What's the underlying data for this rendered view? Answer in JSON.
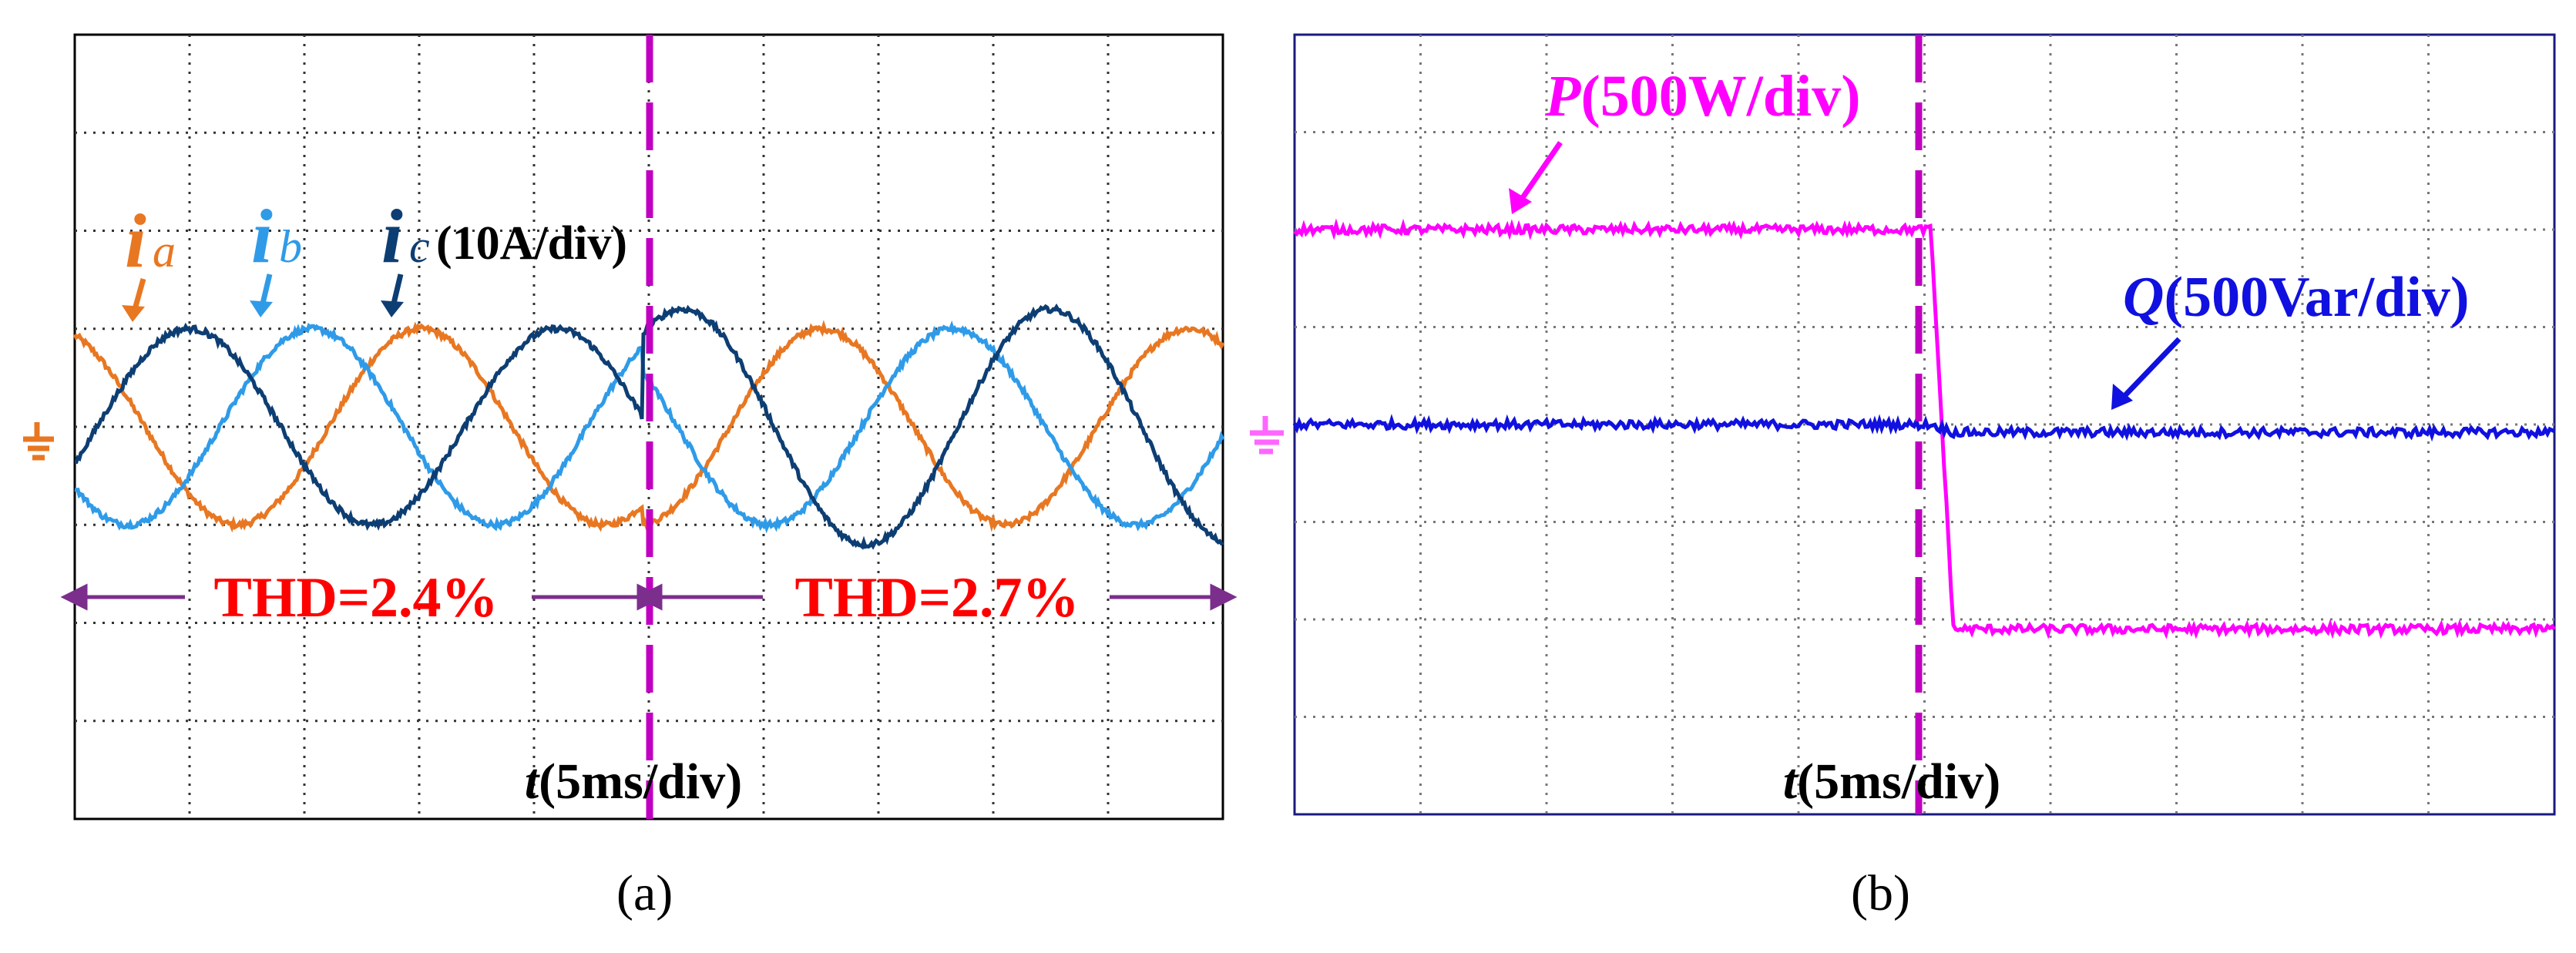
{
  "figure": {
    "panels": [
      {
        "caption": "(a)"
      },
      {
        "caption": "(b)"
      }
    ]
  },
  "chart_data": [
    {
      "type": "line",
      "panel": "a",
      "x_label_italic": "t",
      "x_label": "(5ms/div)",
      "y_scale_label": "(10A/div)",
      "x_divisions": 10,
      "y_divisions": 8,
      "grid": true,
      "event_x_div": 4.95,
      "series": [
        {
          "name_main": "i",
          "name_sub": "a",
          "color": "#E87722",
          "amplitude_div": 1.0,
          "offset_div": 0.0,
          "period_div": 3.2,
          "phase_rad": 1.94,
          "post_amplitude_div": 1.0,
          "post_phase_rad": 4.8
        },
        {
          "name_main": "i",
          "name_sub": "b",
          "color": "#2F9BE8",
          "amplitude_div": 1.0,
          "offset_div": 0.0,
          "period_div": 3.2,
          "phase_rad": 3.8,
          "post_amplitude_div": 1.0,
          "post_phase_rad": 2.55
        },
        {
          "name_main": "i",
          "name_sub": "c",
          "color": "#0D3E73",
          "amplitude_div": 1.0,
          "offset_div": 0.0,
          "period_div": 3.2,
          "phase_rad": 5.9,
          "post_amplitude_div": 1.2,
          "post_phase_rad": 0.9
        }
      ],
      "annotations": [
        {
          "text": "THD=2.4%",
          "color": "#FF0000"
        },
        {
          "text": "THD=2.7%",
          "color": "#FF0000"
        }
      ],
      "arrow_color": "#7B2E8C",
      "event_line_color": "#C000C0",
      "ground_marker_color": "#E87722"
    },
    {
      "type": "line",
      "panel": "b",
      "x_label_italic": "t",
      "x_label": "(5ms/div)",
      "x_divisions": 10,
      "y_divisions": 8,
      "grid": true,
      "event_x_div": 5.05,
      "series": [
        {
          "name": "P",
          "unit_label": "(500W/div)",
          "color": "#FF00FF",
          "level_before_div": 2.0,
          "level_after_div": -2.1
        },
        {
          "name": "Q",
          "unit_label": "(500Var/div)",
          "color": "#1010E0",
          "level_before_div": 0.0,
          "level_after_div": -0.08
        }
      ],
      "event_line_color": "#C000C0",
      "ground_marker_color": "#FF66FF"
    }
  ]
}
